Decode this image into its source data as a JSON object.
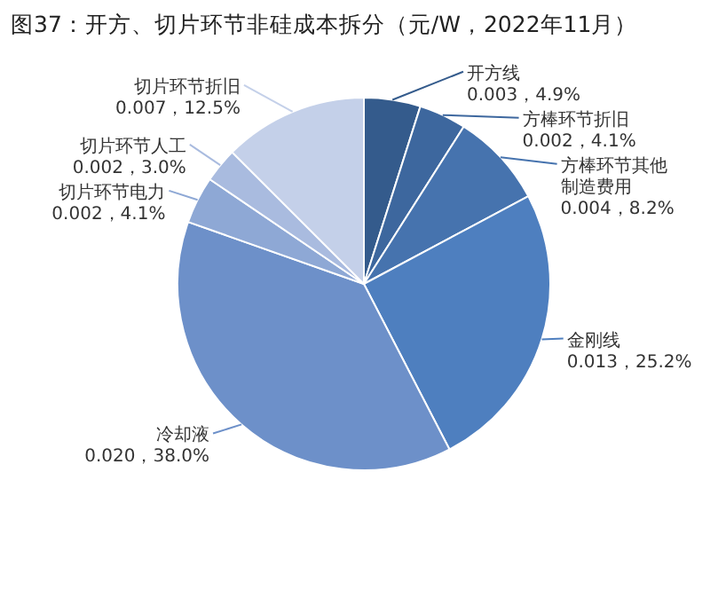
{
  "chart_data": {
    "type": "pie",
    "title": "图37：开方、切片环节非硅成本拆分（元/W，2022年11月）",
    "categories": [
      "开方线",
      "方棒环节折旧",
      "方棒环节其他制造费用",
      "金刚线",
      "冷却液",
      "切片环节电力",
      "切片环节人工",
      "切片环节折旧"
    ],
    "values": [
      4.9,
      4.1,
      8.2,
      25.2,
      38.0,
      4.1,
      3.0,
      12.5
    ],
    "value_labels": [
      "0.003，4.9%",
      "0.002，4.1%",
      "0.004，8.2%",
      "0.013，25.2%",
      "0.020，38.0%",
      "0.002，4.1%",
      "0.002，3.0%",
      "0.007，12.5%"
    ],
    "colors": [
      "#345b8c",
      "#3d679e",
      "#4673ae",
      "#4e7fbf",
      "#6d90c9",
      "#8ea8d5",
      "#a9bbdf",
      "#c4d0e9"
    ]
  }
}
